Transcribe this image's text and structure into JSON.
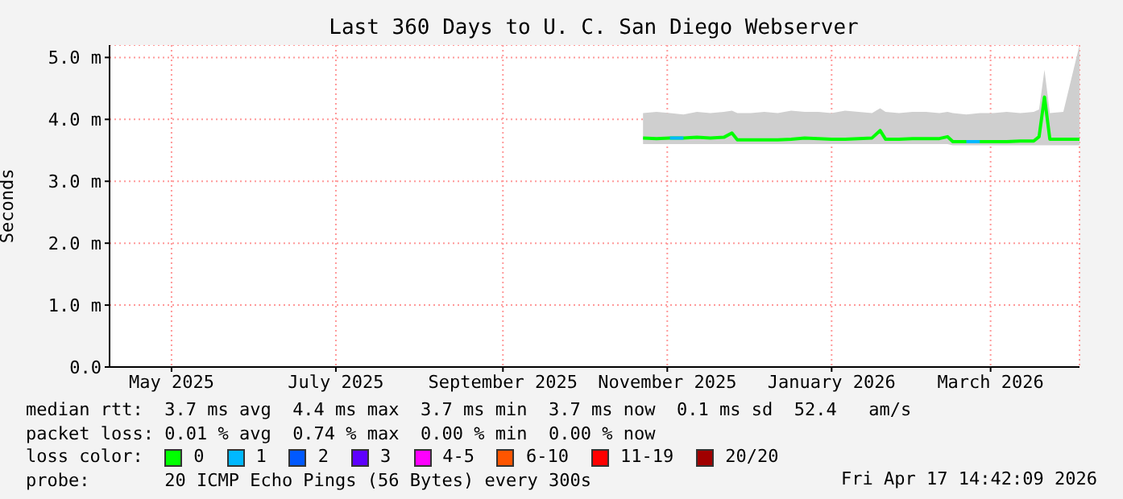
{
  "chart_data": {
    "type": "line",
    "title": "Last 360 Days to U. C. San Diego Webserver",
    "ylabel": "Seconds",
    "x": [
      "2025-11-06",
      "2025-11-11",
      "2025-11-16",
      "2025-11-21",
      "2025-11-26",
      "2025-12-01",
      "2025-12-06",
      "2025-12-09",
      "2025-12-11",
      "2025-12-16",
      "2025-12-21",
      "2025-12-26",
      "2025-12-31",
      "2026-01-05",
      "2026-01-10",
      "2026-01-15",
      "2026-01-20",
      "2026-01-25",
      "2026-01-30",
      "2026-02-02",
      "2026-02-04",
      "2026-02-09",
      "2026-02-14",
      "2026-02-19",
      "2026-02-24",
      "2026-02-27",
      "2026-03-01",
      "2026-03-06",
      "2026-03-11",
      "2026-03-16",
      "2026-03-21",
      "2026-03-26",
      "2026-03-31",
      "2026-04-02",
      "2026-04-04",
      "2026-04-06",
      "2026-04-11",
      "2026-04-17"
    ],
    "series": [
      {
        "name": "0",
        "color": "#00ff00",
        "values": [
          3.7,
          3.69,
          3.7,
          3.7,
          3.71,
          3.7,
          3.71,
          3.78,
          3.67,
          3.67,
          3.67,
          3.67,
          3.68,
          3.7,
          3.69,
          3.68,
          3.68,
          3.69,
          3.7,
          3.82,
          3.68,
          3.68,
          3.69,
          3.69,
          3.69,
          3.72,
          3.64,
          3.64,
          3.64,
          3.64,
          3.64,
          3.65,
          3.65,
          3.72,
          4.36,
          3.68,
          3.68,
          3.68
        ],
        "lower": [
          3.6,
          3.6,
          3.6,
          3.6,
          3.6,
          3.6,
          3.6,
          3.6,
          3.6,
          3.6,
          3.6,
          3.6,
          3.6,
          3.6,
          3.6,
          3.6,
          3.6,
          3.6,
          3.6,
          3.6,
          3.6,
          3.6,
          3.6,
          3.6,
          3.6,
          3.6,
          3.58,
          3.58,
          3.58,
          3.58,
          3.58,
          3.58,
          3.58,
          3.58,
          3.58,
          3.58,
          3.58,
          3.58
        ],
        "upper": [
          4.1,
          4.12,
          4.1,
          4.08,
          4.12,
          4.1,
          4.12,
          4.14,
          4.1,
          4.1,
          4.12,
          4.1,
          4.14,
          4.12,
          4.12,
          4.1,
          4.14,
          4.12,
          4.1,
          4.18,
          4.12,
          4.1,
          4.12,
          4.12,
          4.1,
          4.12,
          4.1,
          4.08,
          4.1,
          4.1,
          4.12,
          4.1,
          4.12,
          4.16,
          4.8,
          4.1,
          4.12,
          5.2
        ]
      },
      {
        "name": "1",
        "color": "#00b8ff",
        "values": [
          null,
          null,
          3.7,
          3.7,
          null,
          null,
          null,
          null,
          null,
          null,
          null,
          null,
          null,
          null,
          null,
          null,
          null,
          null,
          null,
          null,
          null,
          null,
          null,
          null,
          null,
          null,
          null,
          3.64,
          3.64,
          null,
          null,
          null,
          null,
          null,
          null,
          null,
          null,
          null
        ]
      },
      {
        "name": "2",
        "color": "#0059ff",
        "values": [
          null,
          null,
          null,
          null,
          null,
          null,
          null,
          null,
          null,
          null,
          null,
          null,
          null,
          null,
          null,
          null,
          null,
          null,
          null,
          null,
          null,
          null,
          null,
          null,
          null,
          null,
          null,
          null,
          null,
          null,
          null,
          null,
          null,
          null,
          null,
          null,
          null,
          null
        ]
      },
      {
        "name": "3",
        "color": "#5e00ff",
        "values": [
          null,
          null,
          null,
          null,
          null,
          null,
          null,
          null,
          null,
          null,
          null,
          null,
          null,
          null,
          null,
          null,
          null,
          null,
          null,
          null,
          null,
          null,
          null,
          null,
          null,
          null,
          null,
          null,
          null,
          null,
          null,
          null,
          null,
          null,
          null,
          null,
          null,
          null
        ]
      },
      {
        "name": "4-5",
        "color": "#ff00ff",
        "values": [
          null,
          null,
          null,
          null,
          null,
          null,
          null,
          null,
          null,
          null,
          null,
          null,
          null,
          null,
          null,
          null,
          null,
          null,
          null,
          null,
          null,
          null,
          null,
          null,
          null,
          null,
          null,
          null,
          null,
          null,
          null,
          null,
          null,
          null,
          null,
          null,
          null,
          null
        ]
      },
      {
        "name": "6-10",
        "color": "#ff5500",
        "values": [
          null,
          null,
          null,
          null,
          null,
          null,
          null,
          null,
          null,
          null,
          null,
          null,
          null,
          null,
          null,
          null,
          null,
          null,
          null,
          null,
          null,
          null,
          null,
          null,
          null,
          null,
          null,
          null,
          null,
          null,
          null,
          null,
          null,
          null,
          null,
          null,
          null,
          null
        ]
      },
      {
        "name": "11-19",
        "color": "#ff0000",
        "values": [
          null,
          null,
          null,
          null,
          null,
          null,
          null,
          null,
          null,
          null,
          null,
          null,
          null,
          null,
          null,
          null,
          null,
          null,
          null,
          null,
          null,
          null,
          null,
          null,
          null,
          null,
          null,
          null,
          null,
          null,
          null,
          null,
          null,
          null,
          null,
          null,
          null,
          null
        ]
      },
      {
        "name": "20/20",
        "color": "#a10000",
        "values": [
          null,
          null,
          null,
          null,
          null,
          null,
          null,
          null,
          null,
          null,
          null,
          null,
          null,
          null,
          null,
          null,
          null,
          null,
          null,
          null,
          null,
          null,
          null,
          null,
          null,
          null,
          null,
          null,
          null,
          null,
          null,
          null,
          null,
          null,
          null,
          null,
          null,
          null
        ]
      }
    ],
    "legend": "bottom",
    "legend_title": "loss color:",
    "grid": true,
    "xlim": [
      "2025-04-22",
      "2026-04-17"
    ],
    "xticks": [
      {
        "value": "2025-05-15",
        "label": "May 2025"
      },
      {
        "value": "2025-07-15",
        "label": "July 2025"
      },
      {
        "value": "2025-09-15",
        "label": "September 2025"
      },
      {
        "value": "2025-11-15",
        "label": "November 2025"
      },
      {
        "value": "2026-01-15",
        "label": "January 2026"
      },
      {
        "value": "2026-03-15",
        "label": "March 2026"
      }
    ],
    "ylim": [
      0,
      5.2
    ],
    "yticks": [
      {
        "value": 0,
        "label": "0.0"
      },
      {
        "value": 1,
        "label": "1.0 m"
      },
      {
        "value": 2,
        "label": "2.0 m"
      },
      {
        "value": 3,
        "label": "3.0 m"
      },
      {
        "value": 4,
        "label": "4.0 m"
      },
      {
        "value": 5,
        "label": "5.0 m"
      }
    ],
    "annotations": [
      "median rtt:  3.7 ms avg  4.4 ms max  3.7 ms min  3.7 ms now  0.1 ms sd  52.4   am/s",
      "packet loss: 0.01 % avg  0.74 % max  0.00 % min  0.00 % now",
      "probe:       20 ICMP Echo Pings (56 Bytes) every 300s",
      "Fri Apr 17 14:42:09 2026"
    ]
  }
}
